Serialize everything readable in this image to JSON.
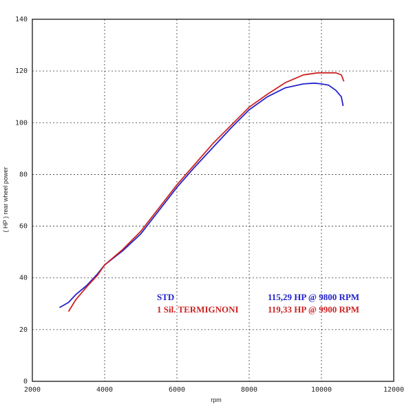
{
  "chart_data": {
    "type": "line",
    "title": "",
    "xlabel": "rpm",
    "ylabel": "( HP )   rear wheel power",
    "xlim": [
      2000,
      12000
    ],
    "ylim": [
      0,
      140
    ],
    "xticks": [
      2000,
      4000,
      6000,
      8000,
      10000,
      12000
    ],
    "yticks": [
      0,
      20,
      40,
      60,
      80,
      100,
      120,
      140
    ],
    "grid": true,
    "legend_position": "bottom-right",
    "series": [
      {
        "name": "STD",
        "summary": "115,29 HP @ 9800 RPM",
        "color": "#2222cc",
        "x": [
          2750,
          3000,
          3200,
          3500,
          3800,
          4000,
          4500,
          5000,
          5500,
          6000,
          6500,
          7000,
          7500,
          8000,
          8500,
          9000,
          9500,
          9800,
          10000,
          10200,
          10400,
          10550,
          10600
        ],
        "y": [
          28.5,
          30.5,
          33.5,
          37,
          41.5,
          45,
          50.5,
          57,
          66,
          75,
          83,
          90.5,
          98,
          105,
          110,
          113.5,
          115,
          115.3,
          115,
          114.5,
          112.5,
          110,
          106.5
        ]
      },
      {
        "name": "1 Sil. TERMIGNONI",
        "summary": "119,33 HP @ 9900 RPM",
        "color": "#cc2222",
        "x": [
          3000,
          3200,
          3500,
          3800,
          4000,
          4500,
          5000,
          5500,
          6000,
          6500,
          7000,
          7500,
          8000,
          8500,
          9000,
          9500,
          9900,
          10200,
          10400,
          10550,
          10620
        ],
        "y": [
          27,
          31.5,
          36.5,
          41,
          45,
          51,
          58,
          67,
          76,
          84,
          92,
          99,
          106,
          111,
          115.5,
          118.5,
          119.3,
          119.3,
          119.3,
          118.5,
          116
        ]
      }
    ]
  },
  "legend": [
    {
      "name": "STD",
      "summary": "115,29 HP @ 9800 RPM",
      "color": "#2222cc"
    },
    {
      "name": "1 Sil. TERMIGNONI",
      "summary": "119,33 HP @ 9900 RPM",
      "color": "#cc2222"
    }
  ]
}
